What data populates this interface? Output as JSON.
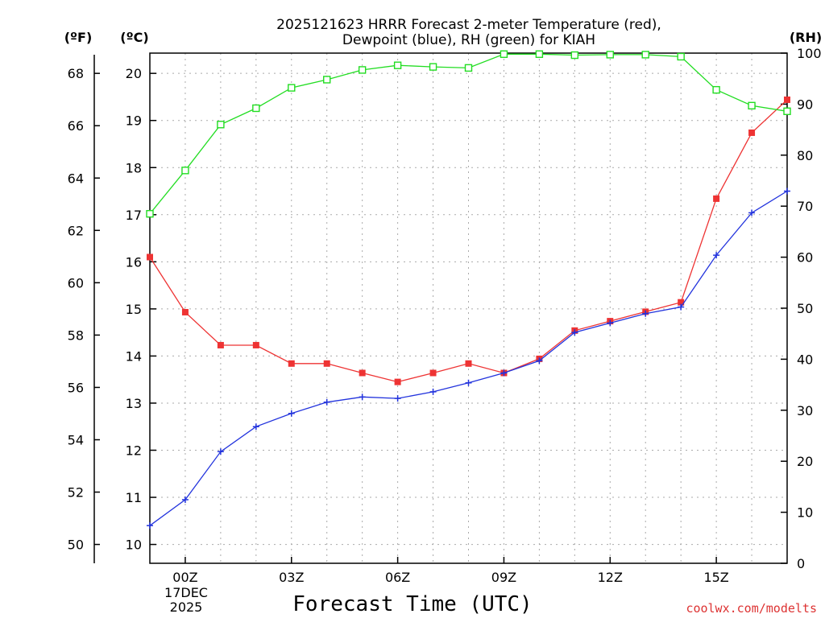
{
  "title_line1": "2025121623 HRRR Forecast 2-meter Temperature (red),",
  "title_line2": "Dewpoint (blue), RH (green) for KIAH",
  "axis_f_label": "(ºF)",
  "axis_c_label": "(ºC)",
  "axis_rh_label": "(RH)",
  "xlabel": "Forecast Time (UTC)",
  "date_label_line1": "17DEC",
  "date_label_line2": "2025",
  "watermark": "coolwx.com/modelts",
  "chart_data": {
    "type": "line",
    "title": "2025121623 HRRR Forecast 2-meter Temperature (red), Dewpoint (blue), RH (green) for KIAH",
    "x_hours": [
      -1,
      0,
      1,
      2,
      3,
      4,
      5,
      6,
      7,
      8,
      9,
      10,
      11,
      12,
      13,
      14,
      15,
      16,
      17
    ],
    "x_tick_hours": [
      0,
      3,
      6,
      9,
      12,
      15
    ],
    "x_tick_labels": [
      "00Z",
      "03Z",
      "06Z",
      "09Z",
      "12Z",
      "15Z"
    ],
    "xlim": [
      -1,
      17
    ],
    "y_left_c": {
      "label": "(ºC)",
      "range": [
        9.6,
        20.43
      ],
      "ticks": [
        10,
        11,
        12,
        13,
        14,
        15,
        16,
        17,
        18,
        19,
        20
      ]
    },
    "y_left_f": {
      "label": "(ºF)",
      "ticks": [
        50,
        52,
        54,
        56,
        58,
        60,
        62,
        64,
        66,
        68
      ]
    },
    "y_right_rh": {
      "label": "(RH)",
      "range": [
        0,
        100
      ],
      "ticks": [
        0,
        10,
        20,
        30,
        40,
        50,
        60,
        70,
        80,
        90,
        100
      ]
    },
    "series": [
      {
        "name": "Temperature",
        "axis": "C",
        "color": "#ee3333",
        "marker": "filled-square",
        "values": [
          16.1,
          14.93,
          14.23,
          14.23,
          13.84,
          13.84,
          13.64,
          13.45,
          13.64,
          13.84,
          13.64,
          13.94,
          14.54,
          14.74,
          14.94,
          15.14,
          17.34,
          18.74,
          19.44
        ]
      },
      {
        "name": "Dewpoint",
        "axis": "C",
        "color": "#2233dd",
        "marker": "plus",
        "values": [
          10.4,
          10.95,
          11.97,
          12.5,
          12.78,
          13.02,
          13.13,
          13.1,
          13.24,
          13.43,
          13.64,
          13.9,
          14.5,
          14.7,
          14.9,
          15.04,
          16.14,
          17.04,
          17.5
        ]
      },
      {
        "name": "RH",
        "axis": "RH",
        "color": "#22dd22",
        "marker": "open-square",
        "values": [
          68.5,
          77,
          86,
          89.2,
          93.2,
          94.8,
          96.7,
          97.6,
          97.3,
          97.1,
          99.8,
          99.8,
          99.6,
          99.7,
          99.7,
          99.3,
          92.8,
          89.7,
          88.6
        ]
      }
    ]
  }
}
